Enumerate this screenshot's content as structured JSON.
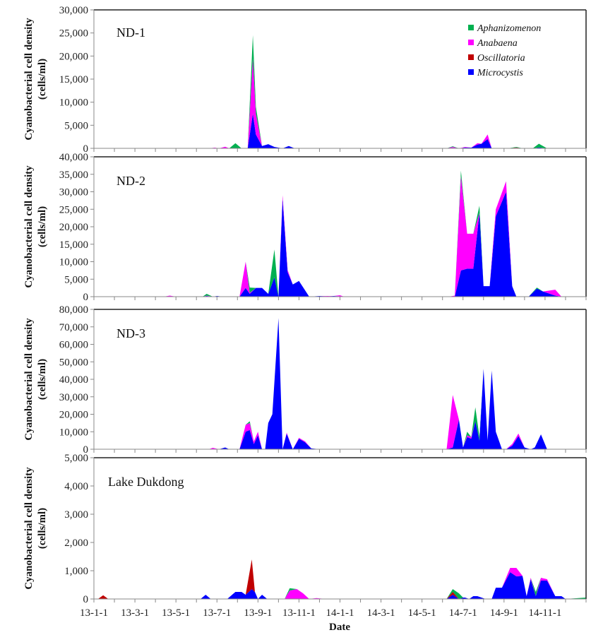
{
  "chart_data": {
    "type": "area",
    "stacked": true,
    "xlabel": "Date",
    "ylabel_line1": "Cyanobacterial cell density",
    "ylabel_line2": "(cells/ml)",
    "x_tick_labels": [
      "13-1-1",
      "13-3-1",
      "13-5-1",
      "13-7-1",
      "13-9-1",
      "13-11-1",
      "14-1-1",
      "14-3-1",
      "14-5-1",
      "14-7-1",
      "14-9-1",
      "14-11-1"
    ],
    "x_unit": "months since 2013-01-01",
    "x_range": [
      0,
      24
    ],
    "legend": {
      "placement": "top-right",
      "entries": [
        {
          "name": "Aphanizomenon",
          "color": "#00b050"
        },
        {
          "name": "Anabaena",
          "color": "#ff00ff"
        },
        {
          "name": "Oscillatoria",
          "color": "#c00000"
        },
        {
          "name": "Microcystis",
          "color": "#0000ff"
        }
      ]
    },
    "stack_order": [
      "Microcystis",
      "Oscillatoria",
      "Anabaena",
      "Aphanizomenon"
    ],
    "panels": [
      {
        "title": "ND-1",
        "ylim": [
          0,
          30000
        ],
        "yticks": [
          "0",
          "5,000",
          "10,000",
          "15,000",
          "20,000",
          "25,000",
          "30,000"
        ],
        "ytick_values": [
          0,
          5000,
          10000,
          15000,
          20000,
          25000,
          30000
        ],
        "x": [
          5.6,
          5.9,
          6.1,
          6.4,
          6.6,
          6.9,
          7.2,
          7.5,
          7.75,
          7.9,
          8.2,
          8.5,
          8.8,
          9.2,
          9.5,
          9.8,
          10,
          12.5,
          13,
          17.2,
          17.5,
          17.8,
          18.1,
          18.4,
          18.7,
          18.9,
          19.2,
          19.4,
          20.2,
          20.6,
          20.9,
          21.4,
          21.7,
          22.1
        ],
        "series": [
          {
            "name": "Microcystis",
            "values": [
              0,
              0,
              0,
              0,
              0,
              0,
              0,
              0,
              7500,
              3000,
              500,
              900,
              300,
              0,
              500,
              0,
              0,
              0,
              0,
              0,
              100,
              0,
              200,
              150,
              800,
              1000,
              2000,
              0,
              0,
              100,
              0,
              0,
              200,
              0
            ]
          },
          {
            "name": "Oscillatoria",
            "values": [
              0,
              0,
              0,
              0,
              0,
              0,
              0,
              0,
              0,
              0,
              0,
              0,
              0,
              0,
              0,
              0,
              0,
              0,
              0,
              0,
              0,
              0,
              0,
              0,
              0,
              0,
              0,
              0,
              0,
              100,
              0,
              0,
              0,
              0
            ]
          },
          {
            "name": "Anabaena",
            "values": [
              0,
              150,
              0,
              350,
              0,
              0,
              0,
              0,
              12000,
              4500,
              0,
              0,
              0,
              0,
              0,
              0,
              0,
              0,
              0,
              0,
              200,
              0,
              100,
              0,
              300,
              0,
              1000,
              0,
              0,
              0,
              0,
              0,
              0,
              0
            ]
          },
          {
            "name": "Aphanizomenon",
            "values": [
              0,
              0,
              0,
              0,
              0,
              1100,
              0,
              0,
              5000,
              1500,
              0,
              0,
              0,
              0,
              0,
              0,
              0,
              0,
              0,
              0,
              150,
              0,
              0,
              0,
              0,
              0,
              0,
              0,
              0,
              100,
              0,
              0,
              800,
              0
            ]
          }
        ]
      },
      {
        "title": "ND-2",
        "ylim": [
          0,
          40000
        ],
        "yticks": [
          "0",
          "5,000",
          "10,000",
          "15,000",
          "20,000",
          "25,000",
          "30,000",
          "35,000",
          "40,000"
        ],
        "ytick_values": [
          0,
          5000,
          10000,
          15000,
          20000,
          25000,
          30000,
          35000,
          40000
        ],
        "x": [
          3.4,
          3.7,
          4,
          5.3,
          5.5,
          5.8,
          6,
          6.3,
          6.6,
          7.1,
          7.4,
          7.6,
          7.9,
          8.2,
          8.5,
          8.8,
          9,
          9.2,
          9.45,
          9.7,
          10,
          10.5,
          11,
          11.4,
          11.7,
          12,
          12.2,
          12.6,
          17.3,
          17.6,
          17.9,
          18.2,
          18.5,
          18.8,
          19,
          19.3,
          19.6,
          20.1,
          20.4,
          20.6,
          21.2,
          21.6,
          21.9,
          22.5,
          22.8,
          23
        ],
        "series": [
          {
            "name": "Microcystis",
            "values": [
              0,
              0,
              0,
              0,
              200,
              0,
              200,
              0,
              0,
              0,
              2500,
              800,
              2500,
              2500,
              800,
              5500,
              0,
              28000,
              7000,
              3500,
              4500,
              0,
              200,
              100,
              200,
              100,
              0,
              0,
              0,
              0,
              7500,
              8000,
              8000,
              24000,
              3000,
              3000,
              23000,
              30000,
              3000,
              0,
              0,
              2300,
              1500,
              300,
              0,
              0
            ]
          },
          {
            "name": "Oscillatoria",
            "values": [
              0,
              0,
              0,
              0,
              0,
              0,
              0,
              0,
              0,
              0,
              0,
              0,
              0,
              0,
              0,
              0,
              0,
              0,
              0,
              0,
              0,
              0,
              0,
              0,
              0,
              0,
              0,
              0,
              0,
              0,
              0,
              0,
              0,
              0,
              0,
              0,
              0,
              0,
              0,
              0,
              0,
              0,
              0,
              0,
              0,
              0
            ]
          },
          {
            "name": "Anabaena",
            "values": [
              0,
              300,
              0,
              0,
              100,
              0,
              0,
              0,
              0,
              0,
              7500,
              300,
              0,
              0,
              0,
              0,
              0,
              1000,
              600,
              0,
              0,
              0,
              0,
              100,
              0,
              300,
              0,
              0,
              0,
              300,
              27000,
              10000,
              10000,
              0,
              0,
              0,
              2000,
              3000,
              0,
              0,
              0,
              0,
              0,
              1700,
              0,
              0
            ]
          },
          {
            "name": "Aphanizomenon",
            "values": [
              0,
              0,
              0,
              0,
              500,
              0,
              0,
              0,
              0,
              0,
              0,
              1500,
              0,
              0,
              0,
              8000,
              0,
              0,
              0,
              0,
              0,
              0,
              0,
              0,
              0,
              0,
              0,
              0,
              0,
              0,
              1500,
              0,
              0,
              2000,
              0,
              0,
              0,
              0,
              0,
              0,
              0,
              300,
              0,
              0,
              0,
              0
            ]
          }
        ]
      },
      {
        "title": "ND-3",
        "ylim": [
          0,
          80000
        ],
        "yticks": [
          "0",
          "10,000",
          "20,000",
          "30,000",
          "40,000",
          "50,000",
          "60,000",
          "70,000",
          "80,000"
        ],
        "ytick_values": [
          0,
          10000,
          20000,
          30000,
          40000,
          50000,
          60000,
          70000,
          80000
        ],
        "x": [
          5.6,
          5.8,
          6.1,
          6.4,
          6.6,
          7.1,
          7.4,
          7.6,
          7.8,
          8,
          8.2,
          8.35,
          8.5,
          8.7,
          9,
          9.2,
          9.4,
          9.7,
          10,
          10.3,
          10.6,
          11,
          17.2,
          17.5,
          17.8,
          18,
          18.2,
          18.4,
          18.6,
          18.8,
          19,
          19.2,
          19.4,
          19.6,
          19.9,
          20.1,
          20.4,
          20.7,
          21,
          21.3,
          21.5,
          21.8,
          22.1,
          22.3
        ],
        "series": [
          {
            "name": "Microcystis",
            "values": [
              0,
              0,
              0,
              1000,
              0,
              0,
              10000,
              11000,
              3000,
              8000,
              0,
              0,
              15000,
              20000,
              75000,
              0,
              9000,
              0,
              6000,
              4000,
              500,
              0,
              0,
              1000,
              17000,
              1000,
              7000,
              6000,
              16000,
              5000,
              46000,
              5000,
              45000,
              10000,
              0,
              0,
              2000,
              7500,
              1000,
              0,
              1000,
              8500,
              0,
              0
            ]
          },
          {
            "name": "Oscillatoria",
            "values": [
              0,
              0,
              0,
              0,
              0,
              0,
              0,
              0,
              0,
              0,
              0,
              0,
              0,
              0,
              0,
              0,
              0,
              0,
              0,
              0,
              0,
              0,
              0,
              0,
              0,
              0,
              0,
              0,
              0,
              0,
              0,
              0,
              0,
              0,
              0,
              0,
              0,
              0,
              0,
              0,
              0,
              0,
              0,
              0
            ]
          },
          {
            "name": "Anabaena",
            "values": [
              0,
              800,
              0,
              0,
              0,
              0,
              4000,
              4000,
              1500,
              2000,
              0,
              0,
              0,
              0,
              0,
              0,
              500,
              0,
              500,
              500,
              0,
              0,
              0,
              30000,
              0,
              0,
              1000,
              1000,
              0,
              0,
              0,
              0,
              0,
              0,
              0,
              0,
              1000,
              1500,
              0,
              0,
              0,
              0,
              0,
              0
            ]
          },
          {
            "name": "Aphanizomenon",
            "values": [
              0,
              0,
              0,
              0,
              0,
              0,
              0,
              1000,
              0,
              0,
              0,
              0,
              0,
              0,
              0,
              0,
              0,
              0,
              0,
              0,
              0,
              0,
              0,
              0,
              0,
              0,
              2000,
              0,
              8000,
              2000,
              0,
              0,
              0,
              0,
              0,
              0,
              0,
              0,
              0,
              0,
              0,
              0,
              0,
              0
            ]
          }
        ]
      },
      {
        "title": "Lake Dukdong",
        "ylim": [
          0,
          5000
        ],
        "yticks": [
          "0",
          "1,000",
          "2,000",
          "3,000",
          "4,000",
          "5,000"
        ],
        "ytick_values": [
          0,
          1000,
          2000,
          3000,
          4000,
          5000
        ],
        "x": [
          0.2,
          0.45,
          0.7,
          5.2,
          5.45,
          5.7,
          6.5,
          6.9,
          7.2,
          7.4,
          7.7,
          7.85,
          8,
          8.2,
          8.45,
          8.75,
          9,
          9.3,
          9.55,
          9.9,
          10.2,
          10.5,
          10.85,
          11.3,
          11.5,
          11.7,
          17.2,
          17.5,
          17.8,
          18,
          18.1,
          18.3,
          18.5,
          18.7,
          19.1,
          19.4,
          19.6,
          19.9,
          20.3,
          20.6,
          20.9,
          21.1,
          21.3,
          21.55,
          21.8,
          22.1,
          22.5,
          22.8,
          23,
          24
        ],
        "series": [
          {
            "name": "Microcystis",
            "values": [
              0,
              0,
              0,
              0,
              150,
              0,
              0,
              250,
              250,
              150,
              350,
              250,
              0,
              150,
              0,
              0,
              0,
              0,
              0,
              0,
              0,
              0,
              0,
              0,
              0,
              0,
              0,
              150,
              0,
              50,
              50,
              0,
              100,
              100,
              0,
              0,
              400,
              400,
              950,
              800,
              820,
              100,
              700,
              100,
              650,
              650,
              100,
              100,
              0,
              0
            ]
          },
          {
            "name": "Oscillatoria",
            "values": [
              0,
              130,
              0,
              0,
              0,
              0,
              0,
              0,
              0,
              0,
              1050,
              0,
              0,
              0,
              0,
              0,
              0,
              0,
              0,
              0,
              0,
              0,
              0,
              0,
              0,
              0,
              0,
              100,
              0,
              0,
              0,
              0,
              0,
              0,
              0,
              0,
              0,
              0,
              0,
              0,
              0,
              0,
              0,
              0,
              0,
              0,
              0,
              0,
              0,
              0
            ]
          },
          {
            "name": "Anabaena",
            "values": [
              0,
              0,
              0,
              0,
              0,
              0,
              0,
              0,
              0,
              0,
              0,
              0,
              0,
              0,
              0,
              0,
              0,
              0,
              300,
              350,
              200,
              0,
              30,
              0,
              0,
              0,
              0,
              0,
              0,
              0,
              0,
              0,
              0,
              0,
              0,
              0,
              0,
              0,
              150,
              300,
              0,
              0,
              50,
              0,
              100,
              50,
              0,
              0,
              0,
              0
            ]
          },
          {
            "name": "Aphanizomenon",
            "values": [
              0,
              0,
              0,
              0,
              0,
              0,
              0,
              0,
              0,
              0,
              0,
              0,
              0,
              0,
              0,
              0,
              0,
              0,
              80,
              0,
              0,
              0,
              0,
              0,
              0,
              0,
              0,
              100,
              200,
              0,
              0,
              0,
              0,
              0,
              0,
              0,
              0,
              0,
              0,
              0,
              0,
              0,
              0,
              150,
              0,
              0,
              0,
              0,
              0,
              50
            ]
          }
        ]
      }
    ]
  }
}
